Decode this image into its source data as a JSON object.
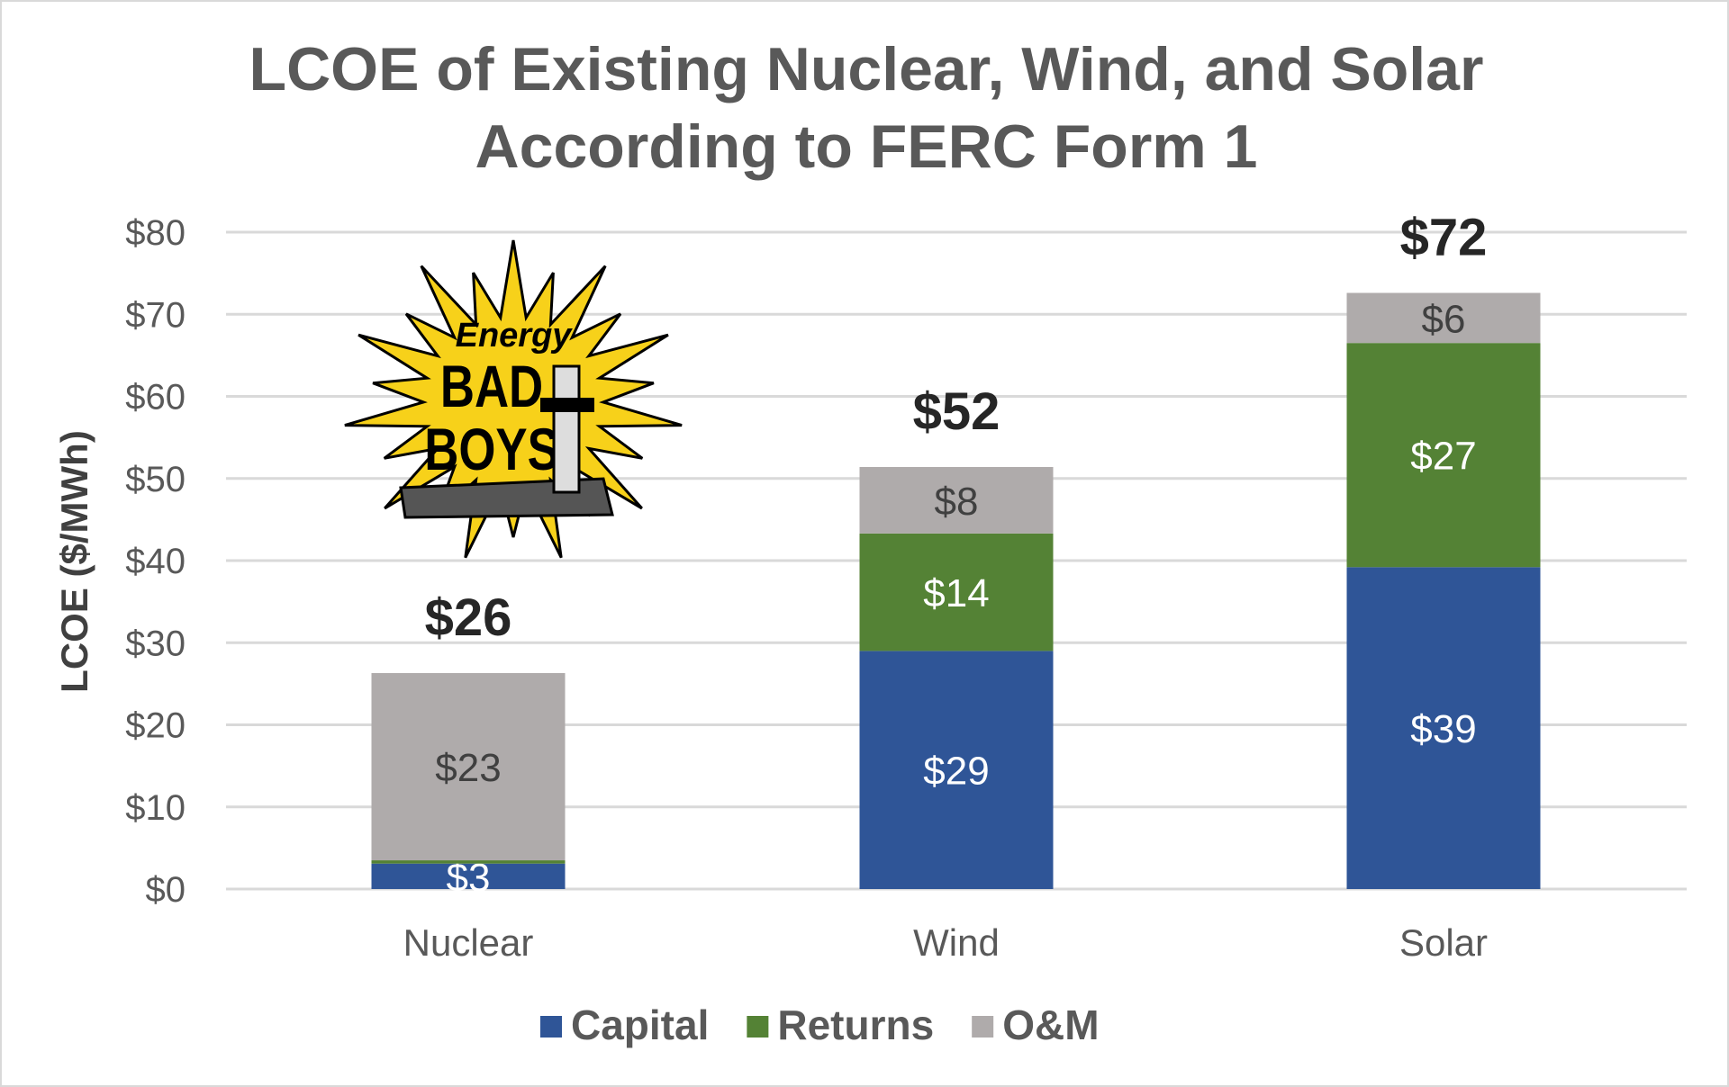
{
  "chart_data": {
    "type": "stacked-bar",
    "title": [
      "LCOE of Existing Nuclear, Wind, and Solar",
      "According to FERC Form 1"
    ],
    "xlabel": "",
    "ylabel": "LCOE ($/MWh)",
    "ylim": [
      0,
      80
    ],
    "yticks": [
      0,
      10,
      20,
      30,
      40,
      50,
      60,
      70,
      80
    ],
    "ytick_labels": [
      "$0",
      "$10",
      "$20",
      "$30",
      "$40",
      "$50",
      "$60",
      "$70",
      "$80"
    ],
    "grid": true,
    "legend_position": "bottom",
    "categories": [
      "Nuclear",
      "Wind",
      "Solar"
    ],
    "series": [
      {
        "name": "Capital",
        "color": "#2f5597",
        "values": [
          3.1,
          29,
          39.2
        ],
        "labels": [
          "$3",
          "$29",
          "$39"
        ],
        "label_color": "#ffffff"
      },
      {
        "name": "Returns",
        "color": "#548235",
        "values": [
          0.4,
          14.3,
          27.3
        ],
        "labels": [
          "",
          "$14",
          "$27"
        ],
        "label_color": "#ffffff"
      },
      {
        "name": "O&M",
        "color": "#afabab",
        "values": [
          22.8,
          8.1,
          6.1
        ],
        "labels": [
          "$23",
          "$8",
          "$6"
        ],
        "label_color": "#404040"
      }
    ],
    "totals": [
      "$26",
      "$52",
      "$72"
    ]
  },
  "logo": {
    "text": [
      "Energy",
      "BAD",
      "BOYS"
    ]
  }
}
